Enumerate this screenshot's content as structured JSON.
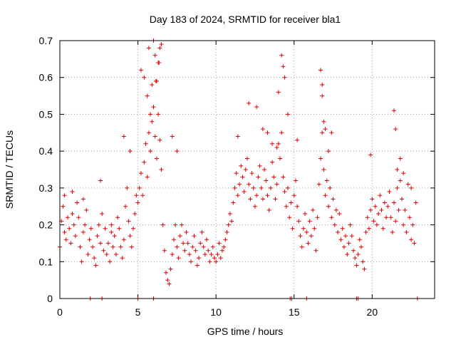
{
  "chart_data": {
    "type": "scatter",
    "title": "Day 183 of 2024, SRMTID for receiver bla1",
    "xlabel": "GPS time / hours",
    "ylabel": "SRMTID / TECUs",
    "xlim": [
      0,
      24
    ],
    "ylim": [
      0,
      0.7
    ],
    "xticks": [
      0,
      5,
      10,
      15,
      20
    ],
    "xtick_labels": [
      "0",
      "5",
      "10",
      "15",
      "20"
    ],
    "yticks": [
      0,
      0.1,
      0.2,
      0.3,
      0.4,
      0.5,
      0.6,
      0.7
    ],
    "ytick_labels": [
      "0",
      "0.1",
      "0.2",
      "0.3",
      "0.4",
      "0.5",
      "0.6",
      "0.7"
    ],
    "grid": true,
    "marker": "+",
    "marker_color": "#e00000",
    "series": [
      {
        "name": "SRMTID",
        "x": [
          0.0,
          0.1,
          0.2,
          0.3,
          0.4,
          0.5,
          0.6,
          0.7,
          0.8,
          0.9,
          1.0,
          1.1,
          1.2,
          1.3,
          1.4,
          1.5,
          1.6,
          1.7,
          1.8,
          1.9,
          2.0,
          2.1,
          2.2,
          2.3,
          2.4,
          2.5,
          2.6,
          2.7,
          2.8,
          2.9,
          3.0,
          3.1,
          3.2,
          3.3,
          3.4,
          3.5,
          3.6,
          3.7,
          3.8,
          3.9,
          4.0,
          4.1,
          4.2,
          4.3,
          4.4,
          4.5,
          4.6,
          4.7,
          4.8,
          4.9,
          5.0,
          5.1,
          5.2,
          5.3,
          5.4,
          5.5,
          5.6,
          5.7,
          5.8,
          5.9,
          6.0,
          6.1,
          6.2,
          6.3,
          6.4,
          6.5,
          6.6,
          6.7,
          6.8,
          6.9,
          7.0,
          7.1,
          7.2,
          7.3,
          7.4,
          7.5,
          7.6,
          7.7,
          7.8,
          7.9,
          8.0,
          8.1,
          8.2,
          8.3,
          8.4,
          8.5,
          8.6,
          8.7,
          8.8,
          8.9,
          9.0,
          9.1,
          9.2,
          9.3,
          9.4,
          9.5,
          9.6,
          9.7,
          9.8,
          9.9,
          10.0,
          10.1,
          10.2,
          10.3,
          10.4,
          10.5,
          10.6,
          10.7,
          10.8,
          10.9,
          11.0,
          11.1,
          11.2,
          11.3,
          11.4,
          11.5,
          11.6,
          11.7,
          11.8,
          11.9,
          12.0,
          12.1,
          12.2,
          12.3,
          12.4,
          12.5,
          12.6,
          12.7,
          12.8,
          12.9,
          13.0,
          13.1,
          13.2,
          13.3,
          13.4,
          13.5,
          13.6,
          13.7,
          13.8,
          13.9,
          14.0,
          14.1,
          14.2,
          14.3,
          14.4,
          14.5,
          14.6,
          14.7,
          14.8,
          14.9,
          15.0,
          15.1,
          15.2,
          15.3,
          15.4,
          15.5,
          15.6,
          15.7,
          15.8,
          15.9,
          16.0,
          16.1,
          16.2,
          16.3,
          16.4,
          16.5,
          16.6,
          16.7,
          16.8,
          16.9,
          17.0,
          17.1,
          17.2,
          17.3,
          17.4,
          17.5,
          17.6,
          17.7,
          17.8,
          17.9,
          18.0,
          18.1,
          18.2,
          18.3,
          18.4,
          18.5,
          18.6,
          18.7,
          18.8,
          18.9,
          19.0,
          19.1,
          19.2,
          19.3,
          19.4,
          19.5,
          19.6,
          19.7,
          19.8,
          19.9,
          20.0,
          20.1,
          20.2,
          20.3,
          20.4,
          20.5,
          20.6,
          20.7,
          20.8,
          20.9,
          21.0,
          21.1,
          21.2,
          21.3,
          21.4,
          21.5,
          21.6,
          21.7,
          21.8,
          21.9,
          22.0,
          22.1,
          22.2,
          22.3,
          22.4,
          22.5,
          22.6,
          22.7,
          22.8,
          0.3,
          0.8,
          1.5,
          2.6,
          3.3,
          4.1,
          4.5,
          5.2,
          5.4,
          5.6,
          5.8,
          5.9,
          6.0,
          6.1,
          6.2,
          6.3,
          6.4,
          6.5,
          7.2,
          7.5,
          11.4,
          12.1,
          12.6,
          13.0,
          13.3,
          13.6,
          13.9,
          14.0,
          14.2,
          14.4,
          14.6,
          15.2,
          16.7,
          16.8,
          16.9,
          17.0,
          17.2,
          17.4,
          19.9,
          21.4,
          21.5,
          21.6,
          21.8,
          22.0,
          22.5,
          5.7,
          6.15,
          6.35,
          14.3,
          16.8,
          1.95,
          2.7,
          5.0,
          6.0,
          14.75,
          14.85,
          15.8,
          19.0,
          19.1,
          22.9
        ],
        "y": [
          0.14,
          0.21,
          0.25,
          0.18,
          0.16,
          0.22,
          0.19,
          0.15,
          0.23,
          0.2,
          0.17,
          0.26,
          0.22,
          0.14,
          0.1,
          0.18,
          0.2,
          0.24,
          0.12,
          0.16,
          0.19,
          0.14,
          0.11,
          0.09,
          0.17,
          0.2,
          0.15,
          0.23,
          0.13,
          0.19,
          0.12,
          0.15,
          0.1,
          0.18,
          0.14,
          0.17,
          0.12,
          0.22,
          0.19,
          0.14,
          0.11,
          0.16,
          0.25,
          0.3,
          0.21,
          0.17,
          0.14,
          0.19,
          0.23,
          0.28,
          0.26,
          0.3,
          0.34,
          0.28,
          0.37,
          0.42,
          0.33,
          0.45,
          0.4,
          0.48,
          0.52,
          0.44,
          0.38,
          0.5,
          0.43,
          0.35,
          0.2,
          0.13,
          0.07,
          0.05,
          0.04,
          0.08,
          0.12,
          0.16,
          0.2,
          0.14,
          0.11,
          0.17,
          0.2,
          0.15,
          0.13,
          0.18,
          0.15,
          0.12,
          0.1,
          0.14,
          0.17,
          0.13,
          0.09,
          0.11,
          0.15,
          0.18,
          0.14,
          0.12,
          0.16,
          0.13,
          0.1,
          0.12,
          0.14,
          0.11,
          0.1,
          0.12,
          0.15,
          0.11,
          0.13,
          0.14,
          0.16,
          0.18,
          0.2,
          0.23,
          0.21,
          0.26,
          0.3,
          0.34,
          0.28,
          0.31,
          0.36,
          0.33,
          0.29,
          0.35,
          0.38,
          0.31,
          0.27,
          0.34,
          0.3,
          0.25,
          0.28,
          0.33,
          0.36,
          0.3,
          0.27,
          0.35,
          0.32,
          0.28,
          0.24,
          0.3,
          0.37,
          0.33,
          0.27,
          0.31,
          0.42,
          0.38,
          0.45,
          0.33,
          0.29,
          0.25,
          0.3,
          0.22,
          0.26,
          0.19,
          0.28,
          0.32,
          0.25,
          0.21,
          0.17,
          0.14,
          0.19,
          0.23,
          0.18,
          0.15,
          0.21,
          0.17,
          0.24,
          0.19,
          0.13,
          0.22,
          0.31,
          0.38,
          0.45,
          0.35,
          0.28,
          0.32,
          0.25,
          0.3,
          0.22,
          0.27,
          0.2,
          0.24,
          0.18,
          0.23,
          0.16,
          0.19,
          0.14,
          0.17,
          0.12,
          0.15,
          0.2,
          0.17,
          0.13,
          0.11,
          0.09,
          0.12,
          0.16,
          0.14,
          0.1,
          0.08,
          0.18,
          0.22,
          0.19,
          0.24,
          0.27,
          0.21,
          0.25,
          0.2,
          0.23,
          0.28,
          0.24,
          0.19,
          0.26,
          0.22,
          0.25,
          0.29,
          0.22,
          0.18,
          0.26,
          0.21,
          0.3,
          0.24,
          0.32,
          0.27,
          0.2,
          0.24,
          0.18,
          0.31,
          0.22,
          0.16,
          0.2,
          0.15,
          0.26,
          0.28,
          0.29,
          0.27,
          0.32,
          0.2,
          0.44,
          0.4,
          0.62,
          0.6,
          0.55,
          0.5,
          0.58,
          0.7,
          0.66,
          0.59,
          0.64,
          0.68,
          0.69,
          0.44,
          0.4,
          0.44,
          0.53,
          0.52,
          0.46,
          0.45,
          0.42,
          0.41,
          0.56,
          0.66,
          0.6,
          0.5,
          0.43,
          0.62,
          0.55,
          0.48,
          0.46,
          0.4,
          0.45,
          0.39,
          0.51,
          0.46,
          0.35,
          0.38,
          0.34,
          0.3,
          0.68,
          0.59,
          0.64,
          0.63,
          0.58,
          0.0,
          0.0,
          0.0,
          0.0,
          0.0,
          0.0,
          0.0,
          0.0,
          0.0,
          0.0
        ]
      }
    ]
  }
}
